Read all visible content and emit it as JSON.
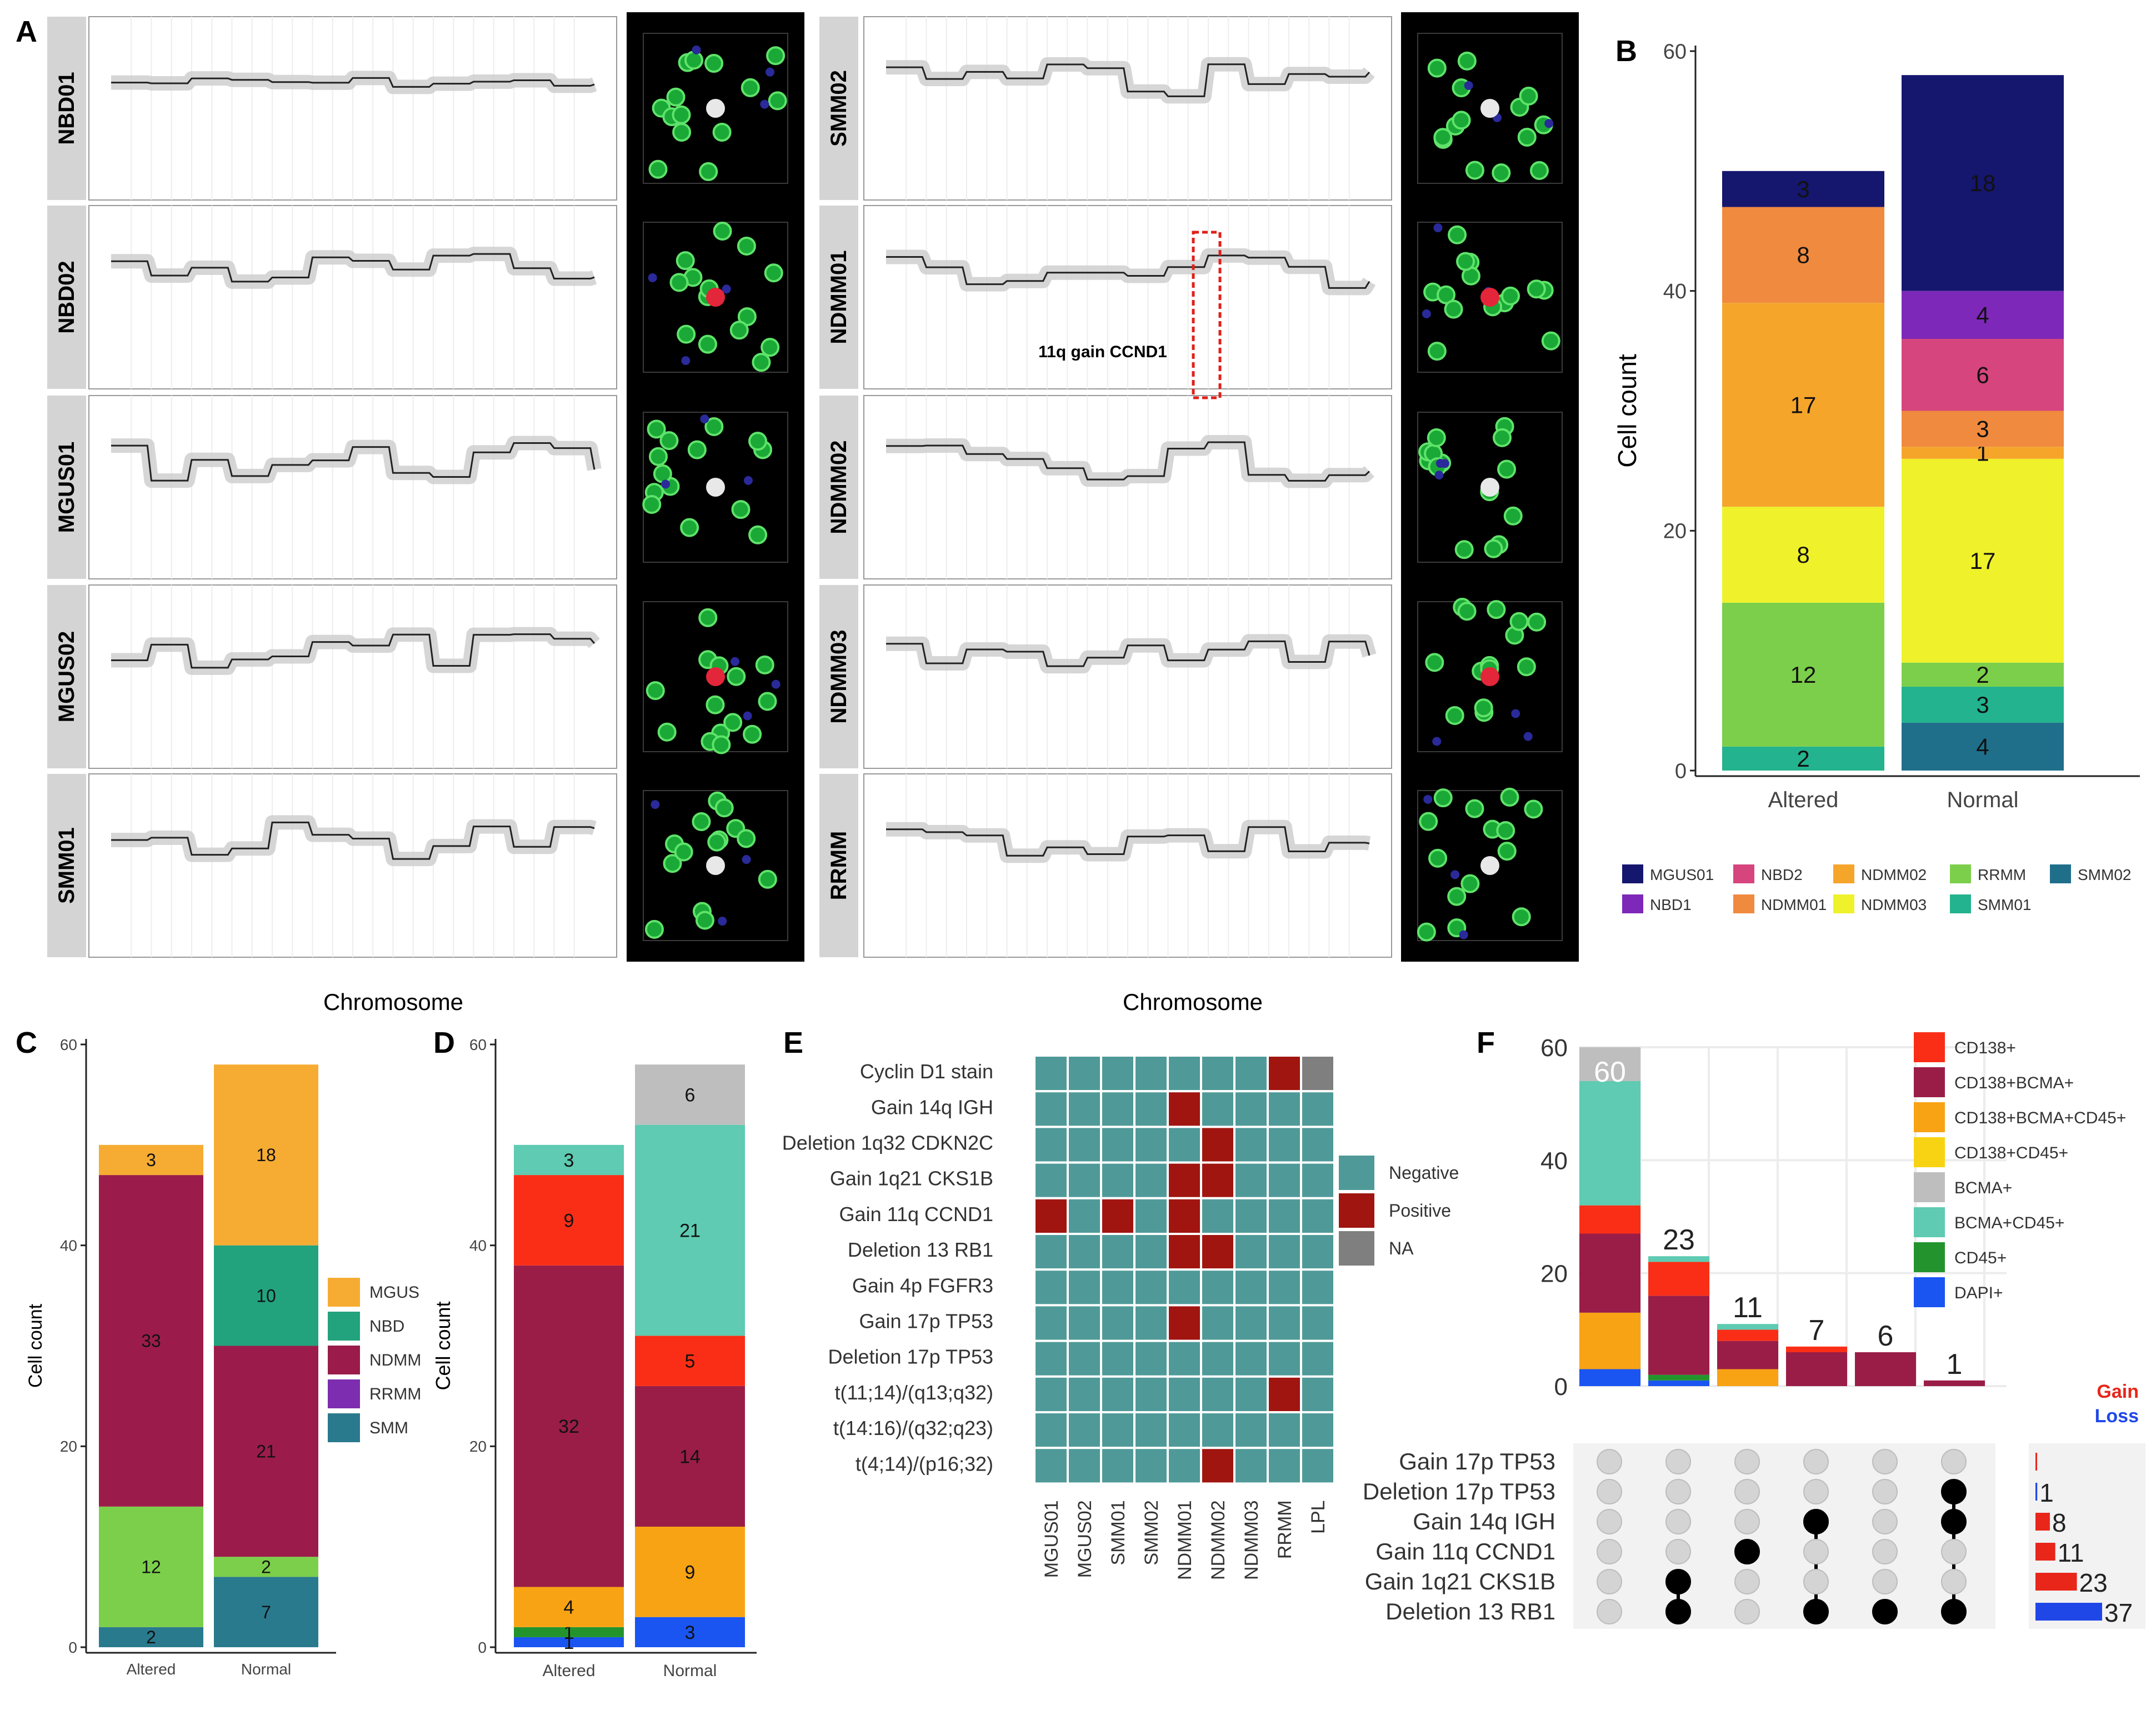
{
  "colors": {
    "MGUS01": "#15166e",
    "NBD1": "#7d28b8",
    "NBD2": "#d6457d",
    "NDMM01": "#f08a3e",
    "NDMM02": "#f6a52b",
    "NDMM03": "#eff22a",
    "RRMM": "#7ccf4a",
    "SMM01": "#23b38e",
    "SMM02": "#1f6f8b",
    "MGUS": "#f6ac33",
    "NBD": "#22a37e",
    "NDMM": "#9b1c4b",
    "RRMM_group": "#7c2db0",
    "SMM": "#2a7a8e",
    "CD138+": "#fa2e16",
    "CD138+BCMA+": "#9a1d48",
    "CD138+BCMA+CD45+": "#f8a314",
    "CD138+CD45+": "#f8d314",
    "BCMA+": "#bebebe",
    "BCMA+CD45+": "#5ecbb2",
    "CD45+": "#23942d",
    "DAPI+": "#1a55f2",
    "heat_negative": "#4f9a98",
    "heat_positive": "#a0150f",
    "heat_na": "#7f7f7f",
    "gain": "#e8261a",
    "loss": "#1f47e8"
  },
  "panels": {
    "A": "A",
    "B": "B",
    "C": "C",
    "D": "D",
    "E": "E",
    "F": "F"
  },
  "panel_a": {
    "left_samples": [
      "NBD01",
      "NBD02",
      "MGUS01",
      "MGUS02",
      "SMM01"
    ],
    "right_samples": [
      "SMM02",
      "NDMM01",
      "NDMM02",
      "NDMM03",
      "RRMM"
    ],
    "xlabel": "Chromosome",
    "annotation": "11q gain CCND1"
  },
  "chart_data": [
    {
      "panel": "B",
      "type": "bar",
      "stacked": true,
      "categories": [
        "Altered",
        "Normal"
      ],
      "ylabel": "Cell count",
      "ylim": [
        0,
        60
      ],
      "yticks": [
        0,
        20,
        40,
        60
      ],
      "series": [
        {
          "name": "SMM01",
          "values": [
            2,
            3
          ]
        },
        {
          "name": "RRMM",
          "values": [
            12,
            2
          ]
        },
        {
          "name": "NDMM03",
          "values": [
            8,
            17
          ]
        },
        {
          "name": "NDMM02",
          "values": [
            17,
            1
          ]
        },
        {
          "name": "NDMM01",
          "values": [
            8,
            3
          ]
        },
        {
          "name": "NBD2",
          "values": [
            0,
            6
          ]
        },
        {
          "name": "NBD1",
          "values": [
            0,
            4
          ]
        },
        {
          "name": "MGUS01",
          "values": [
            3,
            18
          ]
        }
      ],
      "base": {
        "name": "SMM02",
        "values": [
          0,
          4
        ]
      },
      "legend": [
        "MGUS01",
        "NBD1",
        "NBD2",
        "NDMM01",
        "NDMM02",
        "NDMM03",
        "RRMM",
        "SMM01",
        "SMM02"
      ]
    },
    {
      "panel": "C",
      "type": "bar",
      "stacked": true,
      "categories": [
        "Altered",
        "Normal"
      ],
      "ylabel": "Cell count",
      "ylim": [
        0,
        60
      ],
      "yticks": [
        0,
        20,
        40,
        60
      ],
      "series": [
        {
          "name": "SMM",
          "values": [
            2,
            7
          ]
        },
        {
          "name": "RRMM",
          "values": [
            12,
            2
          ]
        },
        {
          "name": "NDMM",
          "values": [
            33,
            21
          ]
        },
        {
          "name": "NBD",
          "values": [
            0,
            10
          ]
        },
        {
          "name": "MGUS",
          "values": [
            3,
            18
          ]
        }
      ],
      "legend": [
        "MGUS",
        "NBD",
        "NDMM",
        "RRMM",
        "SMM"
      ]
    },
    {
      "panel": "D",
      "type": "bar",
      "stacked": true,
      "categories": [
        "Altered",
        "Normal"
      ],
      "ylabel": "Cell count",
      "ylim": [
        0,
        60
      ],
      "yticks": [
        0,
        20,
        40,
        60
      ],
      "series": [
        {
          "name": "DAPI+",
          "values": [
            1,
            3
          ]
        },
        {
          "name": "CD45+",
          "values": [
            1,
            0
          ]
        },
        {
          "name": "CD138+BCMA+CD45+",
          "values": [
            4,
            9
          ]
        },
        {
          "name": "CD138+BCMA+",
          "values": [
            32,
            14
          ]
        },
        {
          "name": "CD138+",
          "values": [
            9,
            5
          ]
        },
        {
          "name": "BCMA+CD45+",
          "values": [
            3,
            21
          ]
        },
        {
          "name": "BCMA+",
          "values": [
            0,
            6
          ]
        }
      ]
    },
    {
      "panel": "E",
      "type": "heatmap",
      "rows": [
        "Cyclin D1 stain",
        "Gain 14q IGH",
        "Deletion 1q32 CDKN2C",
        "Gain 1q21 CKS1B",
        "Gain 11q CCND1",
        "Deletion 13 RB1",
        "Gain 4p FGFR3",
        "Gain 17p TP53",
        "Deletion 17p TP53",
        "t(11;14)/(q13;q32)",
        "t(14:16)/(q32;q23)",
        "t(4;14)/(p16;32)"
      ],
      "columns": [
        "MGUS01",
        "MGUS02",
        "SMM01",
        "SMM02",
        "NDMM01",
        "NDMM02",
        "NDMM03",
        "RRMM",
        "LPL"
      ],
      "values": [
        [
          "N",
          "N",
          "N",
          "N",
          "N",
          "N",
          "N",
          "P",
          "NA"
        ],
        [
          "N",
          "N",
          "N",
          "N",
          "P",
          "N",
          "N",
          "N",
          "N"
        ],
        [
          "N",
          "N",
          "N",
          "N",
          "N",
          "P",
          "N",
          "N",
          "N"
        ],
        [
          "N",
          "N",
          "N",
          "N",
          "P",
          "P",
          "N",
          "N",
          "N"
        ],
        [
          "P",
          "N",
          "P",
          "N",
          "P",
          "N",
          "N",
          "N",
          "N"
        ],
        [
          "N",
          "N",
          "N",
          "N",
          "P",
          "P",
          "N",
          "N",
          "N"
        ],
        [
          "N",
          "N",
          "N",
          "N",
          "N",
          "N",
          "N",
          "N",
          "N"
        ],
        [
          "N",
          "N",
          "N",
          "N",
          "P",
          "N",
          "N",
          "N",
          "N"
        ],
        [
          "N",
          "N",
          "N",
          "N",
          "N",
          "N",
          "N",
          "N",
          "N"
        ],
        [
          "N",
          "N",
          "N",
          "N",
          "N",
          "N",
          "N",
          "P",
          "N"
        ],
        [
          "N",
          "N",
          "N",
          "N",
          "N",
          "N",
          "N",
          "N",
          "N"
        ],
        [
          "N",
          "N",
          "N",
          "N",
          "N",
          "P",
          "N",
          "N",
          "N"
        ]
      ],
      "legend": [
        "Negative",
        "Positive",
        "NA"
      ]
    },
    {
      "panel": "F",
      "type": "bar",
      "stacked": true,
      "subtype": "upset",
      "ylim": [
        0,
        60
      ],
      "yticks": [
        0,
        20,
        40,
        60
      ],
      "totals": [
        60,
        23,
        11,
        7,
        6,
        1
      ],
      "series": [
        {
          "name": "DAPI+",
          "values": [
            3,
            1,
            0,
            0,
            0,
            0
          ]
        },
        {
          "name": "CD45+",
          "values": [
            0,
            1,
            0,
            0,
            0,
            0
          ]
        },
        {
          "name": "CD138+BCMA+CD45+",
          "values": [
            10,
            0,
            3,
            0,
            0,
            0
          ]
        },
        {
          "name": "CD138+BCMA+",
          "values": [
            14,
            14,
            5,
            6,
            6,
            1
          ]
        },
        {
          "name": "CD138+",
          "values": [
            5,
            6,
            2,
            1,
            0,
            0
          ]
        },
        {
          "name": "BCMA+CD45+",
          "values": [
            22,
            1,
            1,
            0,
            0,
            0
          ]
        },
        {
          "name": "BCMA+",
          "values": [
            6,
            0,
            0,
            0,
            0,
            0
          ]
        }
      ],
      "legend": [
        "CD138+",
        "CD138+BCMA+",
        "CD138+BCMA+CD45+",
        "CD138+CD45+",
        "BCMA+",
        "BCMA+CD45+",
        "CD45+",
        "DAPI+"
      ],
      "sets": [
        "Gain 17p TP53",
        "Deletion 17p TP53",
        "Gain 14q IGH",
        "Gain 11q CCND1",
        "Gain 1q21 CKS1B",
        "Deletion 13 RB1"
      ],
      "memberships": [
        [],
        [
          "Gain 1q21 CKS1B",
          "Deletion 13 RB1"
        ],
        [
          "Gain 11q CCND1"
        ],
        [
          "Gain 14q IGH",
          "Deletion 13 RB1"
        ],
        [
          "Deletion 13 RB1"
        ],
        [
          "Deletion 17p TP53",
          "Gain 14q IGH",
          "Deletion 13 RB1"
        ]
      ],
      "set_sizes": [
        {
          "set": "Gain 17p TP53",
          "value": 0,
          "type": "Gain",
          "label": ""
        },
        {
          "set": "Deletion 17p TP53",
          "value": 1,
          "type": "Loss",
          "label": "1"
        },
        {
          "set": "Gain 14q IGH",
          "value": 8,
          "type": "Gain",
          "label": "8"
        },
        {
          "set": "Gain 11q CCND1",
          "value": 11,
          "type": "Gain",
          "label": "11"
        },
        {
          "set": "Gain 1q21 CKS1B",
          "value": 23,
          "type": "Gain",
          "label": "23"
        },
        {
          "set": "Deletion 13 RB1",
          "value": 37,
          "type": "Loss",
          "label": "37"
        }
      ],
      "size_legend": [
        "Gain",
        "Loss"
      ]
    }
  ]
}
